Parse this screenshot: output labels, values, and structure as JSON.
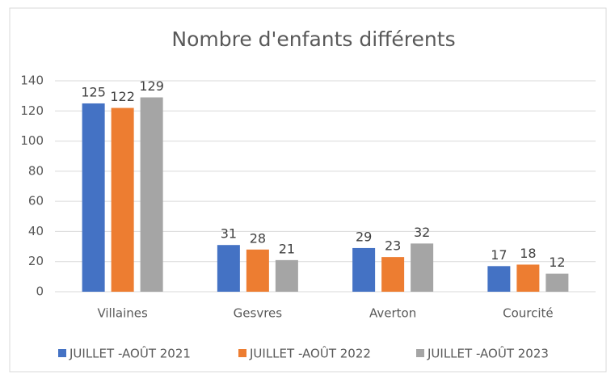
{
  "chart_data": {
    "type": "bar",
    "title": "Nombre d'enfants différents",
    "categories": [
      "Villaines",
      "Gesvres",
      "Averton",
      "Courcité"
    ],
    "series": [
      {
        "name": "JUILLET -AOÛT 2021",
        "color": "#4472c4",
        "values": [
          125,
          31,
          29,
          17
        ]
      },
      {
        "name": "JUILLET -AOÛT 2022",
        "color": "#ed7d31",
        "values": [
          122,
          28,
          23,
          18
        ]
      },
      {
        "name": "JUILLET -AOÛT 2023",
        "color": "#a5a5a5",
        "values": [
          129,
          21,
          32,
          12
        ]
      }
    ],
    "ylim": [
      0,
      140
    ],
    "yticks": [
      0,
      20,
      40,
      60,
      80,
      100,
      120,
      140
    ],
    "grid": true,
    "legend": "bottom"
  }
}
